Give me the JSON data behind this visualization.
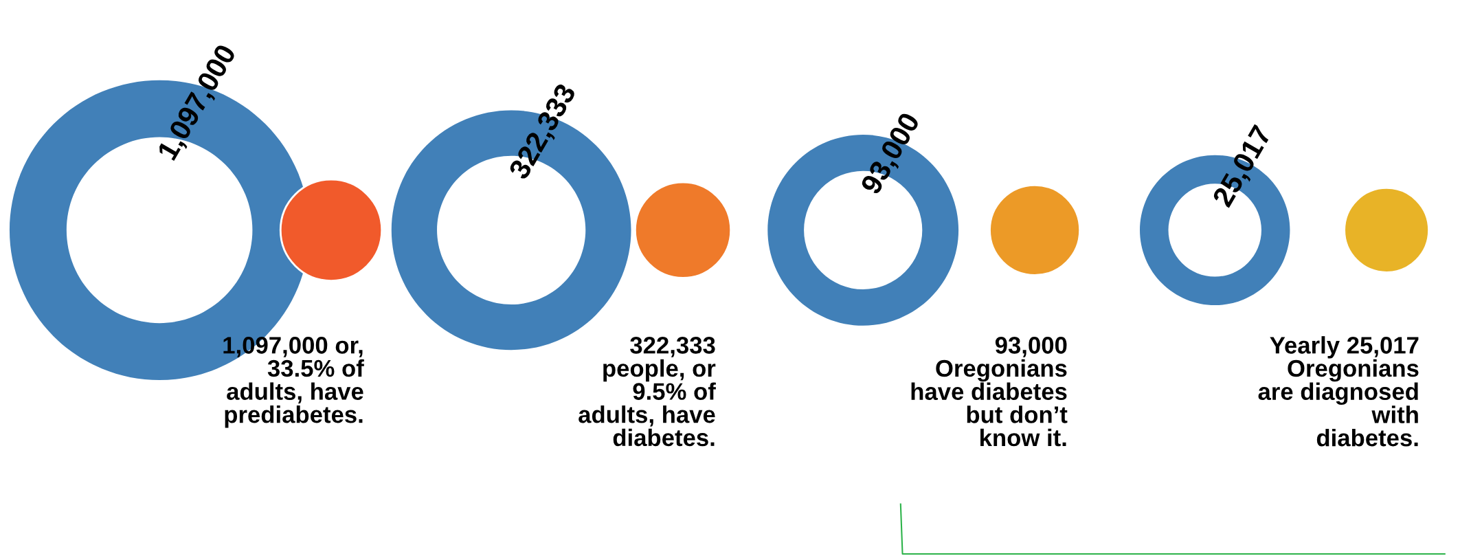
{
  "chart_data": {
    "type": "other",
    "categories": [
      null,
      null,
      null,
      null
    ],
    "values": [
      1097000,
      322333,
      93000,
      25017
    ],
    "value_labels": [
      "1,097,000",
      "322,333",
      "93,000",
      "25,017"
    ],
    "color": "#4180b8",
    "colors": [
      "#f15a2b",
      "#ef7a2a",
      "#ec9a27",
      "#e8b327"
    ],
    "annotations": [
      "1,097,000 or,\n33.5% of\nadults, have\nprediabetes.",
      "322,333\npeople, or\n9.5% of\nadults, have\ndiabetes.",
      "93,000\nOregonians\nhave diabetes\nbut don’t\nknow it.",
      "Yearly 25,017\nOregonians\nare diagnosed\nwith\ndiabetes."
    ]
  }
}
